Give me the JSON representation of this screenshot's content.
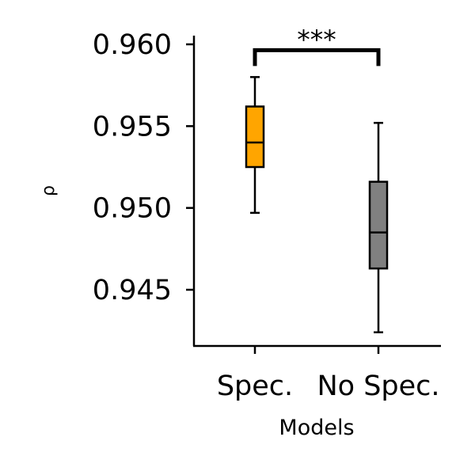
{
  "chart_data": {
    "type": "box",
    "title": "",
    "xlabel": "Models",
    "ylabel": "ρ",
    "ylim": [
      0.9415,
      0.9605
    ],
    "yticks": [
      0.945,
      0.95,
      0.955,
      0.96
    ],
    "ytick_labels": [
      "0.945",
      "0.950",
      "0.955",
      "0.960"
    ],
    "grid": false,
    "categories": [
      "Spec.",
      "No Spec."
    ],
    "series": [
      {
        "category": "Spec.",
        "color": "#FFA500",
        "whisker_low": 0.9497,
        "q1": 0.9525,
        "median": 0.954,
        "q3": 0.9562,
        "whisker_high": 0.958
      },
      {
        "category": "No Spec.",
        "color": "#808080",
        "whisker_low": 0.9424,
        "q1": 0.9463,
        "median": 0.9485,
        "q3": 0.9516,
        "whisker_high": 0.9552
      }
    ],
    "annotations": [
      {
        "type": "significance-bracket",
        "between": [
          "Spec.",
          "No Spec."
        ],
        "text": "***",
        "level": 0.9595
      }
    ]
  }
}
